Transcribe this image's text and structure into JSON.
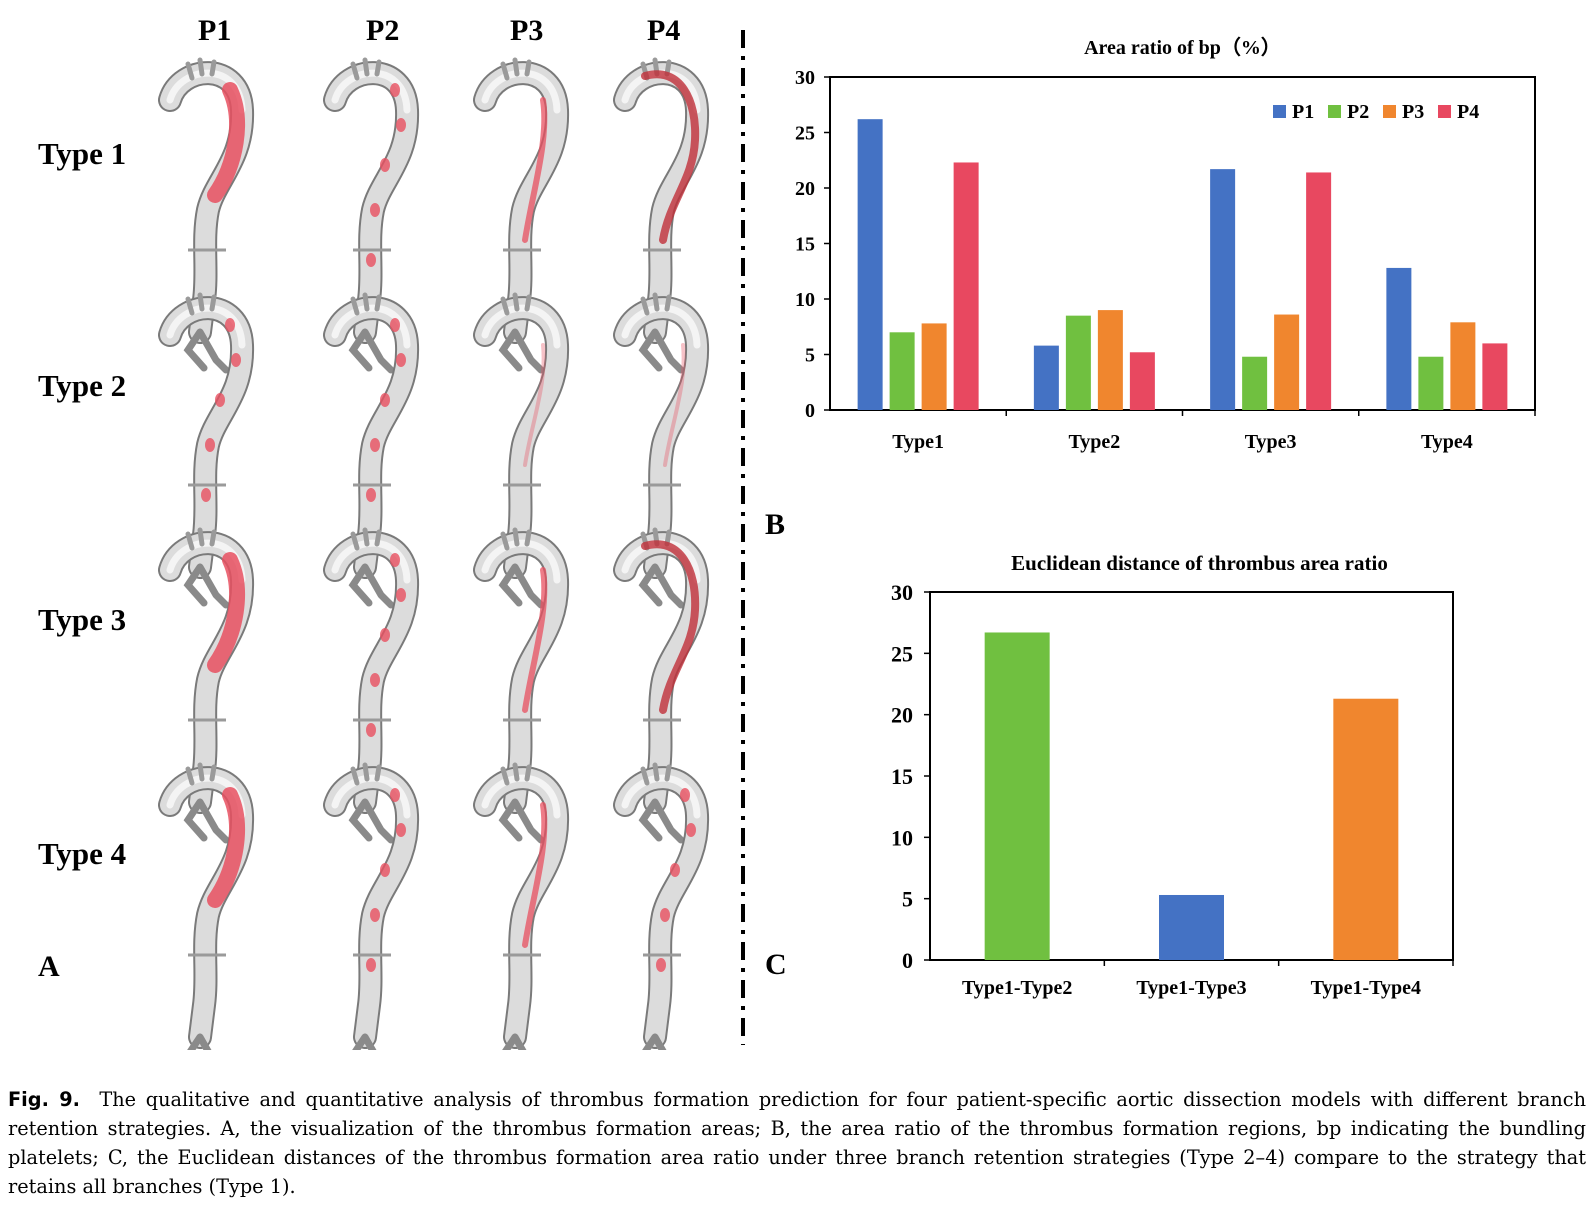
{
  "panel_a": {
    "columns": [
      "P1",
      "P2",
      "P3",
      "P4"
    ],
    "rows": [
      "Type 1",
      "Type 2",
      "Type 3",
      "Type 4"
    ],
    "label": "A"
  },
  "panel_b_label": "B",
  "panel_c_label": "C",
  "colors": {
    "P1": "#4472c4",
    "P2": "#70c040",
    "P3": "#f0862e",
    "P4": "#e84860"
  },
  "chart_data": [
    {
      "type": "bar",
      "title": "Area ratio of bp（%）",
      "categories": [
        "Type1",
        "Type2",
        "Type3",
        "Type4"
      ],
      "series": [
        {
          "name": "P1",
          "values": [
            26.2,
            5.8,
            21.7,
            12.8
          ],
          "color": "#4472c4"
        },
        {
          "name": "P2",
          "values": [
            7.0,
            8.5,
            4.8,
            4.8
          ],
          "color": "#70c040"
        },
        {
          "name": "P3",
          "values": [
            7.8,
            9.0,
            8.6,
            7.9
          ],
          "color": "#f0862e"
        },
        {
          "name": "P4",
          "values": [
            22.3,
            5.2,
            21.4,
            6.0
          ],
          "color": "#e84860"
        }
      ],
      "ylim": [
        0,
        30
      ],
      "yticks": [
        0,
        5,
        10,
        15,
        20,
        25,
        30
      ],
      "legend": "top-right",
      "grid": false
    },
    {
      "type": "bar",
      "title": "Euclidean distance of thrombus area ratio",
      "categories": [
        "Type1-Type2",
        "Type1-Type3",
        "Type1-Type4"
      ],
      "values": [
        26.7,
        5.3,
        21.3
      ],
      "colors": [
        "#70c040",
        "#4472c4",
        "#f0862e"
      ],
      "ylim": [
        0,
        30
      ],
      "yticks": [
        0,
        5,
        10,
        15,
        20,
        25,
        30
      ],
      "grid": false
    }
  ],
  "caption": {
    "label": "Fig. 9.",
    "text": "The qualitative and quantitative analysis of thrombus formation prediction for four patient-specific aortic dissection models with different branch retention strategies. A, the visualization of the thrombus formation areas; B, the area ratio of the thrombus formation regions, bp indicating the bundling platelets; C, the Euclidean distances of the thrombus formation area ratio under three branch retention strategies (Type 2–4) compare to the strategy that retains all branches (Type 1)."
  }
}
